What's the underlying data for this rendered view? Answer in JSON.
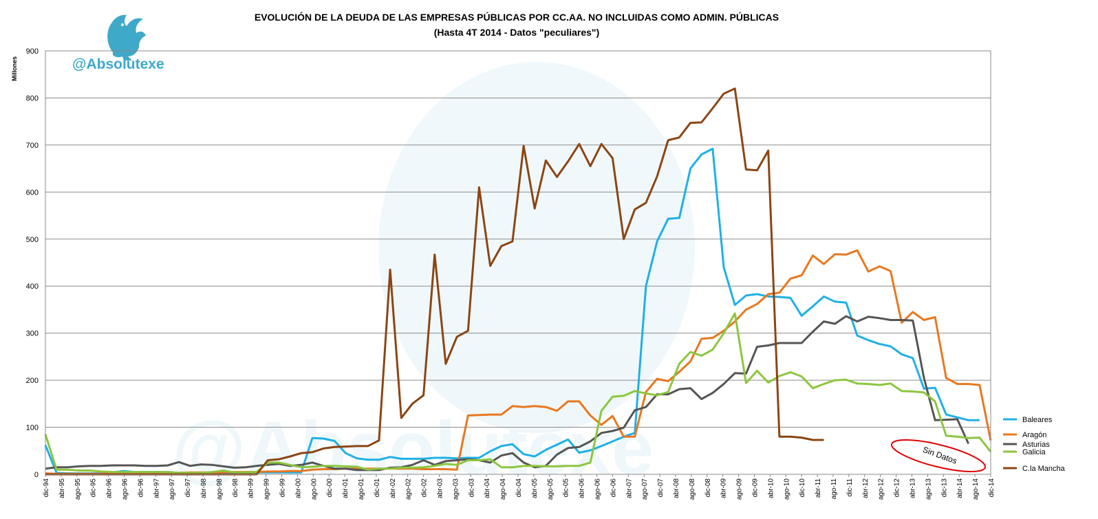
{
  "brand": {
    "handle": "@Absolutexe",
    "logo_icon": "griffin-logo-icon",
    "watermark_text": "@Absolutexe"
  },
  "chart_data": {
    "type": "line",
    "title": "EVOLUCIÓN DE LA DEUDA DE LAS EMPRESAS PÚBLICAS POR CC.AA.  NO INCLUIDAS COMO ADMIN. PÚBLICAS",
    "subtitle": "(Hasta 4T 2014 - Datos \"peculiares\")",
    "ylabel": "Millones",
    "xlabel": "",
    "ylim": [
      0,
      900
    ],
    "yticks": [
      0,
      100,
      200,
      300,
      400,
      500,
      600,
      700,
      800,
      900
    ],
    "grid": true,
    "legend_position": "right",
    "xtick_labels": [
      "dic-94",
      "abr-95",
      "ago-95",
      "dic-95",
      "abr-96",
      "ago-96",
      "dic-96",
      "abr-97",
      "ago-97",
      "dic-97",
      "abr-98",
      "ago-98",
      "dic-98",
      "abr-99",
      "ago-99",
      "dic-99",
      "abr-00",
      "ago-00",
      "dic-00",
      "abr-01",
      "ago-01",
      "dic-01",
      "abr-02",
      "ago-02",
      "dic-02",
      "abr-03",
      "ago-03",
      "dic-03",
      "abr-04",
      "ago-04",
      "dic-04",
      "abr-05",
      "ago-05",
      "dic-05",
      "abr-06",
      "ago-06",
      "dic-06",
      "abr-07",
      "ago-07",
      "dic-07",
      "abr-08",
      "ago-08",
      "dic-08",
      "abr-09",
      "ago-09",
      "dic-09",
      "abr-10",
      "ago-10",
      "dic-10",
      "abr-11",
      "ago-11",
      "dic-11",
      "abr-12",
      "ago-12",
      "dic-12",
      "abr-13",
      "ago-13",
      "dic-13",
      "abr-14",
      "ago-14",
      "dic-14"
    ],
    "annotation": "Sin Datos",
    "series": [
      {
        "name": "Baleares",
        "color": "#1fb0e6",
        "values": [
          62,
          3,
          2,
          2,
          2,
          2,
          4,
          7,
          5,
          5,
          5,
          5,
          3,
          3,
          3,
          3,
          3,
          4,
          4,
          4,
          4,
          4,
          4,
          4,
          77,
          76,
          71,
          45,
          34,
          31,
          31,
          37,
          33,
          33,
          33,
          35,
          35,
          34,
          35,
          35,
          49,
          60,
          64,
          43,
          38,
          52,
          63,
          74,
          46,
          51,
          60,
          70,
          80,
          88,
          400,
          495,
          543,
          545,
          650,
          680,
          692,
          440,
          360,
          380,
          383,
          378,
          377,
          375,
          337,
          357,
          378,
          367,
          365,
          295,
          285,
          277,
          272,
          255,
          247,
          182,
          184,
          127,
          121,
          115,
          115
        ]
      },
      {
        "name": "Aragón",
        "color": "#e8781f",
        "values": [
          2,
          1,
          1,
          1,
          1,
          1,
          2,
          2,
          2,
          2,
          3,
          3,
          3,
          4,
          4,
          4,
          5,
          5,
          5,
          5,
          6,
          6,
          7,
          7,
          10,
          11,
          11,
          12,
          12,
          12,
          12,
          12,
          12,
          12,
          11,
          11,
          11,
          10,
          125,
          126,
          127,
          127,
          145,
          143,
          145,
          143,
          135,
          155,
          155,
          125,
          105,
          124,
          80,
          80,
          175,
          203,
          198,
          218,
          240,
          288,
          290,
          305,
          325,
          350,
          362,
          383,
          386,
          416,
          423,
          465,
          447,
          468,
          467,
          476,
          431,
          442,
          432,
          322,
          345,
          328,
          334,
          205,
          192,
          192,
          190,
          72
        ]
      },
      {
        "name": "Asturias",
        "color": "#555555",
        "values": [
          12,
          15,
          15,
          17,
          18,
          18,
          19,
          19,
          19,
          18,
          18,
          19,
          26,
          18,
          21,
          20,
          17,
          14,
          15,
          18,
          20,
          22,
          18,
          20,
          25,
          18,
          12,
          12,
          9,
          9,
          9,
          14,
          15,
          20,
          30,
          20,
          28,
          30,
          32,
          30,
          25,
          40,
          45,
          25,
          15,
          18,
          42,
          56,
          58,
          70,
          88,
          92,
          99,
          136,
          143,
          170,
          170,
          181,
          183,
          160,
          173,
          192,
          215,
          214,
          271,
          274,
          279,
          279,
          279,
          303,
          325,
          320,
          336,
          325,
          335,
          332,
          328,
          328,
          327,
          205,
          115,
          116,
          117,
          65
        ]
      },
      {
        "name": "Galicia",
        "color": "#8cc63f",
        "values": [
          85,
          10,
          10,
          8,
          8,
          6,
          5,
          5,
          5,
          5,
          5,
          5,
          3,
          3,
          3,
          5,
          8,
          4,
          4,
          5,
          25,
          25,
          20,
          15,
          16,
          18,
          18,
          17,
          16,
          10,
          12,
          12,
          14,
          14,
          15,
          18,
          22,
          20,
          30,
          30,
          32,
          15,
          15,
          18,
          18,
          17,
          17,
          18,
          18,
          25,
          135,
          165,
          167,
          177,
          172,
          168,
          175,
          235,
          260,
          252,
          265,
          300,
          342,
          194,
          220,
          195,
          209,
          217,
          208,
          183,
          192,
          200,
          201,
          193,
          192,
          190,
          193,
          177,
          176,
          174,
          155,
          82,
          80,
          77,
          78,
          48
        ]
      },
      {
        "name": "C.la Mancha",
        "color": "#8b4513",
        "values": [
          0,
          0,
          0,
          0,
          0,
          0,
          0,
          0,
          0,
          0,
          0,
          0,
          0,
          0,
          0,
          0,
          0,
          0,
          0,
          0,
          30,
          32,
          38,
          45,
          47,
          55,
          58,
          59,
          60,
          60,
          72,
          435,
          120,
          150,
          168,
          467,
          235,
          292,
          305,
          610,
          443,
          485,
          495,
          698,
          565,
          667,
          632,
          665,
          702,
          655,
          702,
          672,
          500,
          563,
          577,
          633,
          710,
          716,
          747,
          748,
          778,
          809,
          820,
          648,
          646,
          688,
          80,
          80,
          78,
          73,
          73
        ]
      }
    ]
  },
  "legend": {
    "items": [
      "Baleares",
      "Aragón",
      "Asturias",
      "Galicia",
      "C.la Mancha"
    ]
  }
}
